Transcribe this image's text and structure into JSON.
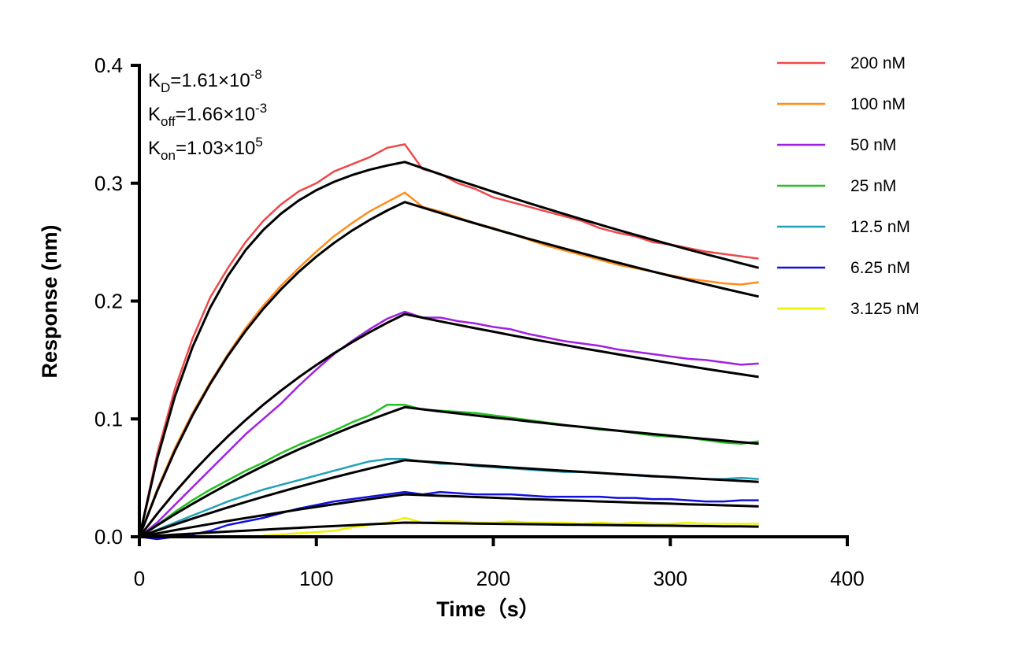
{
  "chart_data": {
    "type": "line",
    "title": "",
    "xlabel": "Time（s）",
    "ylabel": "Response (nm)",
    "xlim": [
      0,
      400
    ],
    "ylim": [
      0,
      0.4
    ],
    "xticks": [
      "0",
      "100",
      "200",
      "300",
      "400"
    ],
    "yticks": [
      "0.0",
      "0.1",
      "0.2",
      "0.3",
      "0.4"
    ],
    "grid": false,
    "legend_position": "right",
    "annotations": [
      {
        "main": "K",
        "sub": "D",
        "rest": "=1.61×10",
        "sup": "-8"
      },
      {
        "main": "K",
        "sub": "off",
        "rest": "=1.66×10",
        "sup": "-3"
      },
      {
        "main": "K",
        "sub": "on",
        "rest": "=1.03×10",
        "sup": "5"
      }
    ],
    "x": [
      0,
      10,
      20,
      30,
      40,
      50,
      60,
      70,
      80,
      90,
      100,
      110,
      120,
      130,
      140,
      150,
      160,
      170,
      180,
      190,
      200,
      210,
      220,
      230,
      240,
      250,
      260,
      270,
      280,
      290,
      300,
      310,
      320,
      330,
      340,
      350
    ],
    "fit_color": "#000000",
    "series": [
      {
        "name": "200 nM",
        "color": "#f04848",
        "values": [
          0,
          0.07,
          0.125,
          0.168,
          0.203,
          0.228,
          0.25,
          0.268,
          0.282,
          0.293,
          0.3,
          0.31,
          0.316,
          0.322,
          0.33,
          0.333,
          0.312,
          0.308,
          0.3,
          0.295,
          0.288,
          0.284,
          0.28,
          0.276,
          0.272,
          0.268,
          0.262,
          0.258,
          0.255,
          0.25,
          0.248,
          0.245,
          0.242,
          0.24,
          0.238,
          0.236
        ],
        "fit": [
          0,
          0.0659,
          0.1186,
          0.1608,
          0.1944,
          0.2214,
          0.2432,
          0.2603,
          0.2741,
          0.2853,
          0.2941,
          0.3012,
          0.3068,
          0.3114,
          0.315,
          0.318,
          0.3128,
          0.3076,
          0.3025,
          0.2976,
          0.2927,
          0.2879,
          0.2831,
          0.2785,
          0.2739,
          0.2694,
          0.265,
          0.2606,
          0.2563,
          0.2521,
          0.2479,
          0.2438,
          0.2398,
          0.2359,
          0.232,
          0.2282
        ]
      },
      {
        "name": "100 nM",
        "color": "#ff8c1a",
        "values": [
          0,
          0.04,
          0.075,
          0.105,
          0.131,
          0.155,
          0.177,
          0.196,
          0.213,
          0.228,
          0.242,
          0.255,
          0.266,
          0.276,
          0.284,
          0.292,
          0.28,
          0.276,
          0.271,
          0.266,
          0.262,
          0.257,
          0.252,
          0.247,
          0.243,
          0.239,
          0.235,
          0.231,
          0.228,
          0.225,
          0.222,
          0.219,
          0.217,
          0.215,
          0.214,
          0.216
        ],
        "fit": [
          0,
          0.0385,
          0.0726,
          0.1029,
          0.1297,
          0.1535,
          0.1746,
          0.1933,
          0.2099,
          0.2247,
          0.2377,
          0.2493,
          0.2596,
          0.2687,
          0.2768,
          0.284,
          0.2793,
          0.2747,
          0.2702,
          0.2658,
          0.2614,
          0.2571,
          0.2528,
          0.2487,
          0.2446,
          0.2406,
          0.2366,
          0.2327,
          0.2289,
          0.2251,
          0.2214,
          0.2178,
          0.2142,
          0.2107,
          0.2072,
          0.2038
        ]
      },
      {
        "name": "50 nM",
        "color": "#a020e0",
        "values": [
          0,
          0.012,
          0.027,
          0.042,
          0.057,
          0.072,
          0.087,
          0.1,
          0.113,
          0.128,
          0.142,
          0.155,
          0.166,
          0.176,
          0.185,
          0.191,
          0.186,
          0.186,
          0.183,
          0.181,
          0.178,
          0.176,
          0.172,
          0.169,
          0.166,
          0.164,
          0.162,
          0.159,
          0.157,
          0.155,
          0.153,
          0.151,
          0.15,
          0.148,
          0.146,
          0.147
        ],
        "fit": [
          0,
          0.0194,
          0.0376,
          0.0546,
          0.0704,
          0.0852,
          0.099,
          0.112,
          0.124,
          0.1353,
          0.1458,
          0.1557,
          0.1649,
          0.1735,
          0.1815,
          0.189,
          0.1859,
          0.1828,
          0.1798,
          0.1769,
          0.174,
          0.1711,
          0.1683,
          0.1655,
          0.1628,
          0.1601,
          0.1575,
          0.1549,
          0.1523,
          0.1498,
          0.1474,
          0.1449,
          0.1425,
          0.1402,
          0.1379,
          0.1356
        ]
      },
      {
        "name": "25 nM",
        "color": "#22c020",
        "values": [
          0,
          0.01,
          0.021,
          0.031,
          0.04,
          0.048,
          0.056,
          0.063,
          0.071,
          0.078,
          0.084,
          0.09,
          0.097,
          0.103,
          0.112,
          0.112,
          0.108,
          0.107,
          0.106,
          0.105,
          0.103,
          0.101,
          0.099,
          0.097,
          0.095,
          0.093,
          0.091,
          0.09,
          0.088,
          0.086,
          0.085,
          0.084,
          0.082,
          0.08,
          0.079,
          0.081
        ],
        "fit": [
          0,
          0.0097,
          0.019,
          0.0279,
          0.0364,
          0.0446,
          0.0525,
          0.06,
          0.0672,
          0.0741,
          0.0807,
          0.0871,
          0.0932,
          0.099,
          0.1046,
          0.11,
          0.1082,
          0.1064,
          0.1047,
          0.1029,
          0.1012,
          0.0996,
          0.0979,
          0.0963,
          0.0947,
          0.0932,
          0.0916,
          0.0901,
          0.0886,
          0.0872,
          0.0858,
          0.0843,
          0.083,
          0.0816,
          0.0803,
          0.0789
        ]
      },
      {
        "name": "12.5 nM",
        "color": "#20a0b8",
        "values": [
          0,
          0.006,
          0.012,
          0.018,
          0.024,
          0.03,
          0.035,
          0.04,
          0.044,
          0.048,
          0.052,
          0.056,
          0.06,
          0.064,
          0.066,
          0.066,
          0.064,
          0.062,
          0.062,
          0.06,
          0.059,
          0.058,
          0.057,
          0.056,
          0.055,
          0.055,
          0.054,
          0.053,
          0.052,
          0.051,
          0.051,
          0.05,
          0.049,
          0.049,
          0.05,
          0.049
        ],
        "fit": [
          0,
          0.0053,
          0.0104,
          0.0154,
          0.0202,
          0.0249,
          0.0295,
          0.0339,
          0.0382,
          0.0424,
          0.0465,
          0.0504,
          0.0542,
          0.0579,
          0.0615,
          0.065,
          0.0639,
          0.0629,
          0.0618,
          0.0608,
          0.0598,
          0.0588,
          0.0579,
          0.0569,
          0.056,
          0.0551,
          0.0542,
          0.0533,
          0.0524,
          0.0515,
          0.0507,
          0.0498,
          0.049,
          0.0482,
          0.0474,
          0.0466
        ]
      },
      {
        "name": "6.25 nM",
        "color": "#1010e0",
        "values": [
          0,
          -0.002,
          0,
          0.002,
          0.005,
          0.01,
          0.013,
          0.016,
          0.02,
          0.024,
          0.027,
          0.03,
          0.032,
          0.034,
          0.036,
          0.038,
          0.036,
          0.038,
          0.037,
          0.036,
          0.036,
          0.036,
          0.035,
          0.034,
          0.034,
          0.034,
          0.034,
          0.033,
          0.033,
          0.032,
          0.032,
          0.031,
          0.03,
          0.03,
          0.031,
          0.031
        ],
        "fit": [
          0,
          0.0028,
          0.0056,
          0.0082,
          0.0108,
          0.0134,
          0.0159,
          0.0183,
          0.0207,
          0.0231,
          0.0254,
          0.0276,
          0.0298,
          0.0319,
          0.034,
          0.036,
          0.0354,
          0.0348,
          0.0343,
          0.0337,
          0.0331,
          0.0326,
          0.032,
          0.0315,
          0.031,
          0.0305,
          0.03,
          0.0295,
          0.029,
          0.0285,
          0.0281,
          0.0276,
          0.0272,
          0.0267,
          0.0263,
          0.0258
        ]
      },
      {
        "name": "3.125 nM",
        "color": "#f0f000",
        "values": [
          null,
          null,
          null,
          null,
          null,
          null,
          null,
          0.001,
          0.002,
          0.003,
          0.004,
          0.005,
          0.008,
          0.01,
          0.012,
          0.016,
          0.012,
          0.013,
          0.013,
          0.012,
          0.012,
          0.013,
          0.012,
          0.012,
          0.012,
          0.011,
          0.012,
          0.011,
          0.012,
          0.011,
          0.011,
          0.012,
          0.011,
          0.011,
          0.011,
          0.011
        ],
        "fit": [
          0,
          0.0009,
          0.0018,
          0.0027,
          0.0036,
          0.0044,
          0.0052,
          0.006,
          0.0068,
          0.0076,
          0.0084,
          0.0091,
          0.0099,
          0.0106,
          0.0113,
          0.012,
          0.0118,
          0.0116,
          0.0114,
          0.0112,
          0.011,
          0.0109,
          0.0107,
          0.0105,
          0.0103,
          0.0102,
          0.01,
          0.0098,
          0.0097,
          0.0095,
          0.0094,
          0.0092,
          0.0091,
          0.0089,
          0.0088,
          0.0086
        ]
      }
    ]
  }
}
